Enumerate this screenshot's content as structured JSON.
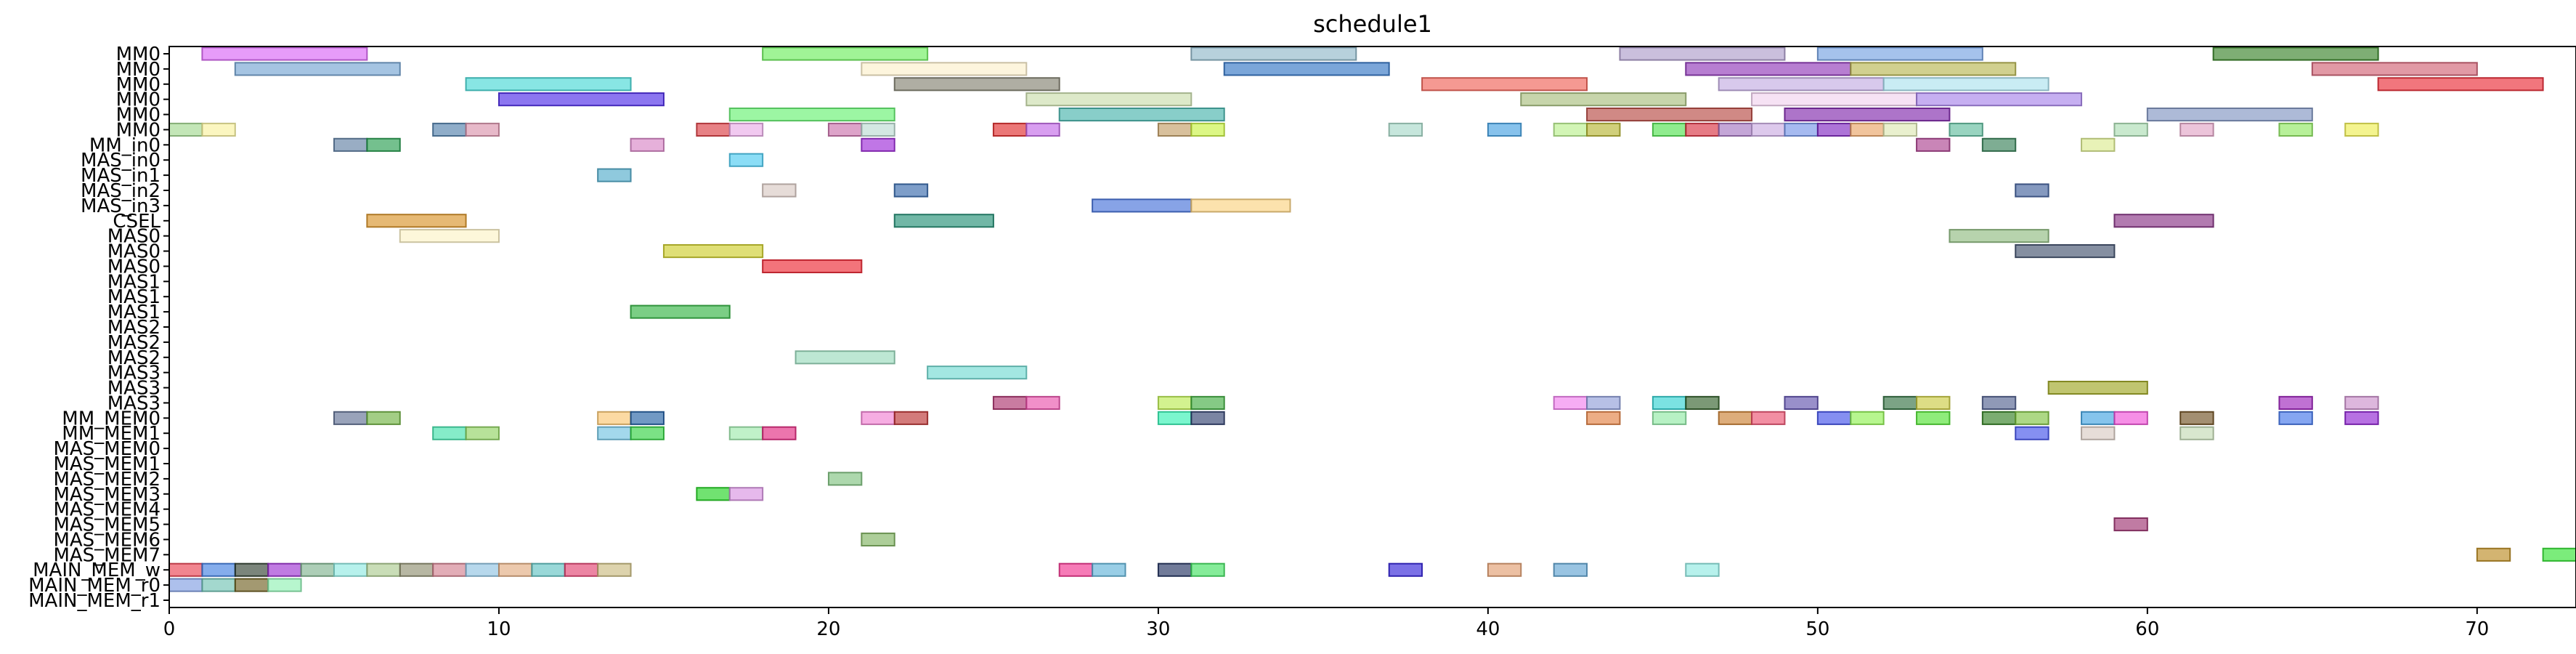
{
  "chart_data": {
    "type": "gantt",
    "title": "schedule1",
    "xlabel": "",
    "ylabel": "",
    "xlim": [
      0,
      73
    ],
    "x_ticks": [
      0,
      10,
      20,
      30,
      40,
      50,
      60,
      70
    ],
    "grid": false,
    "rows": [
      "MM0",
      "MM0",
      "MM0",
      "MM0",
      "MM0",
      "MM0",
      "MM_in0",
      "MAS_in0",
      "MAS_in1",
      "MAS_in2",
      "MAS_in3",
      "CSEL",
      "MAS0",
      "MAS0",
      "MAS0",
      "MAS1",
      "MAS1",
      "MAS1",
      "MAS2",
      "MAS2",
      "MAS2",
      "MAS3",
      "MAS3",
      "MAS3",
      "MM_MEM0",
      "MM_MEM1",
      "MAS_MEM0",
      "MAS_MEM1",
      "MAS_MEM2",
      "MAS_MEM3",
      "MAS_MEM4",
      "MAS_MEM5",
      "MAS_MEM6",
      "MAS_MEM7",
      "MAIN_MEM_w",
      "MAIN_MEM_r0",
      "MAIN_MEM_r1"
    ],
    "tasks": [
      {
        "row": 0,
        "start": 1,
        "end": 6,
        "color": "#d95ff5"
      },
      {
        "row": 0,
        "start": 18,
        "end": 23,
        "color": "#66ee55"
      },
      {
        "row": 0,
        "start": 31,
        "end": 36,
        "color": "#8ab4c6"
      },
      {
        "row": 0,
        "start": 44,
        "end": 49,
        "color": "#a997c8"
      },
      {
        "row": 0,
        "start": 50,
        "end": 55,
        "color": "#6d9de0"
      },
      {
        "row": 0,
        "start": 62,
        "end": 67,
        "color": "#2e7d1e"
      },
      {
        "row": 1,
        "start": 2,
        "end": 7,
        "color": "#6d9fd0"
      },
      {
        "row": 1,
        "start": 21,
        "end": 26,
        "color": "#fbefc8"
      },
      {
        "row": 1,
        "start": 32,
        "end": 37,
        "color": "#2a6fc2"
      },
      {
        "row": 1,
        "start": 46,
        "end": 51,
        "color": "#8a2fb5"
      },
      {
        "row": 1,
        "start": 51,
        "end": 56,
        "color": "#b5b34a"
      },
      {
        "row": 1,
        "start": 65,
        "end": 70,
        "color": "#cf5a6e"
      },
      {
        "row": 2,
        "start": 9,
        "end": 14,
        "color": "#3fd6d3"
      },
      {
        "row": 2,
        "start": 22,
        "end": 27,
        "color": "#7e7c6a"
      },
      {
        "row": 2,
        "start": 38,
        "end": 43,
        "color": "#ef5b4f"
      },
      {
        "row": 2,
        "start": 47,
        "end": 52,
        "color": "#c0a8e0"
      },
      {
        "row": 2,
        "start": 52,
        "end": 57,
        "color": "#a8e0ee"
      },
      {
        "row": 2,
        "start": 67,
        "end": 72,
        "color": "#e8222d"
      },
      {
        "row": 3,
        "start": 10,
        "end": 15,
        "color": "#4522e6"
      },
      {
        "row": 3,
        "start": 26,
        "end": 31,
        "color": "#c8dca8"
      },
      {
        "row": 3,
        "start": 41,
        "end": 46,
        "color": "#a4bc78"
      },
      {
        "row": 3,
        "start": 48,
        "end": 53,
        "color": "#f0d0ee"
      },
      {
        "row": 3,
        "start": 53,
        "end": 58,
        "color": "#a37ee8"
      },
      {
        "row": 4,
        "start": 17,
        "end": 22,
        "color": "#5ff06a"
      },
      {
        "row": 4,
        "start": 27,
        "end": 32,
        "color": "#3fb0a8"
      },
      {
        "row": 4,
        "start": 43,
        "end": 48,
        "color": "#b3413a"
      },
      {
        "row": 4,
        "start": 49,
        "end": 54,
        "color": "#7a1fa8"
      },
      {
        "row": 4,
        "start": 60,
        "end": 65,
        "color": "#7a8fbe"
      },
      {
        "row": 5,
        "start": 0,
        "end": 1,
        "color": "#9ed68a"
      },
      {
        "row": 5,
        "start": 1,
        "end": 2,
        "color": "#f8f19a"
      },
      {
        "row": 5,
        "start": 8,
        "end": 9,
        "color": "#4a7aa8"
      },
      {
        "row": 5,
        "start": 9,
        "end": 10,
        "color": "#d98ea8"
      },
      {
        "row": 5,
        "start": 16,
        "end": 17,
        "color": "#d9343a"
      },
      {
        "row": 5,
        "start": 17,
        "end": 18,
        "color": "#e8a8e6"
      },
      {
        "row": 5,
        "start": 20,
        "end": 21,
        "color": "#c86aa8"
      },
      {
        "row": 5,
        "start": 21,
        "end": 22,
        "color": "#b8dad0"
      },
      {
        "row": 5,
        "start": 25,
        "end": 26,
        "color": "#de2424"
      },
      {
        "row": 5,
        "start": 26,
        "end": 27,
        "color": "#c063e6"
      },
      {
        "row": 5,
        "start": 30,
        "end": 31,
        "color": "#c09a60"
      },
      {
        "row": 5,
        "start": 31,
        "end": 32,
        "color": "#c7f23a"
      },
      {
        "row": 5,
        "start": 37,
        "end": 38,
        "color": "#a3d7c6"
      },
      {
        "row": 5,
        "start": 40,
        "end": 41,
        "color": "#3e9ce0"
      },
      {
        "row": 5,
        "start": 42,
        "end": 43,
        "color": "#b6ef88"
      },
      {
        "row": 5,
        "start": 43,
        "end": 44,
        "color": "#b3b22a"
      },
      {
        "row": 5,
        "start": 45,
        "end": 46,
        "color": "#4ae048"
      },
      {
        "row": 5,
        "start": 46,
        "end": 47,
        "color": "#d62a3a"
      },
      {
        "row": 5,
        "start": 47,
        "end": 48,
        "color": "#a06fbe"
      },
      {
        "row": 5,
        "start": 48,
        "end": 49,
        "color": "#c8a8e0"
      },
      {
        "row": 5,
        "start": 49,
        "end": 50,
        "color": "#6f8fe6"
      },
      {
        "row": 5,
        "start": 50,
        "end": 51,
        "color": "#7a1fbe"
      },
      {
        "row": 5,
        "start": 51,
        "end": 52,
        "color": "#e8a060"
      },
      {
        "row": 5,
        "start": 52,
        "end": 53,
        "color": "#dbe6b0"
      },
      {
        "row": 5,
        "start": 54,
        "end": 55,
        "color": "#5aba9a"
      },
      {
        "row": 5,
        "start": 59,
        "end": 60,
        "color": "#a8dcb0"
      },
      {
        "row": 5,
        "start": 61,
        "end": 62,
        "color": "#e0a0c4"
      },
      {
        "row": 5,
        "start": 64,
        "end": 65,
        "color": "#8ae65a"
      },
      {
        "row": 5,
        "start": 66,
        "end": 67,
        "color": "#eded4a"
      },
      {
        "row": 6,
        "start": 5,
        "end": 6,
        "color": "#5a7aa0"
      },
      {
        "row": 6,
        "start": 6,
        "end": 7,
        "color": "#1e9a48"
      },
      {
        "row": 6,
        "start": 14,
        "end": 15,
        "color": "#d680c4"
      },
      {
        "row": 6,
        "start": 21,
        "end": 22,
        "color": "#9a22d6"
      },
      {
        "row": 6,
        "start": 53,
        "end": 54,
        "color": "#a83a8a"
      },
      {
        "row": 6,
        "start": 55,
        "end": 56,
        "color": "#2e7a50"
      },
      {
        "row": 6,
        "start": 58,
        "end": 59,
        "color": "#daea8a"
      },
      {
        "row": 7,
        "start": 17,
        "end": 18,
        "color": "#44c8f0"
      },
      {
        "row": 8,
        "start": 13,
        "end": 14,
        "color": "#4aa8c8"
      },
      {
        "row": 9,
        "start": 18,
        "end": 19,
        "color": "#d6c6c0"
      },
      {
        "row": 9,
        "start": 22,
        "end": 23,
        "color": "#2e62a8"
      },
      {
        "row": 9,
        "start": 56,
        "end": 57,
        "color": "#3a5a98"
      },
      {
        "row": 10,
        "start": 28,
        "end": 31,
        "color": "#3e6ad6"
      },
      {
        "row": 10,
        "start": 31,
        "end": 34,
        "color": "#fad07a"
      },
      {
        "row": 11,
        "start": 6,
        "end": 9,
        "color": "#d68e1e"
      },
      {
        "row": 11,
        "start": 22,
        "end": 25,
        "color": "#1a8a70"
      },
      {
        "row": 11,
        "start": 59,
        "end": 62,
        "color": "#822a80"
      },
      {
        "row": 12,
        "start": 7,
        "end": 10,
        "color": "#fcf2c4"
      },
      {
        "row": 12,
        "start": 54,
        "end": 57,
        "color": "#8ab87a"
      },
      {
        "row": 13,
        "start": 15,
        "end": 18,
        "color": "#cccc22"
      },
      {
        "row": 13,
        "start": 56,
        "end": 59,
        "color": "#3a4a68"
      },
      {
        "row": 14,
        "start": 18,
        "end": 21,
        "color": "#ec1e2a"
      },
      {
        "row": 17,
        "start": 14,
        "end": 17,
        "color": "#2ab03a"
      },
      {
        "row": 20,
        "start": 19,
        "end": 22,
        "color": "#94d8b8"
      },
      {
        "row": 21,
        "start": 23,
        "end": 26,
        "color": "#6ad8d0"
      },
      {
        "row": 22,
        "start": 57,
        "end": 60,
        "color": "#9aa218"
      },
      {
        "row": 23,
        "start": 25,
        "end": 26,
        "color": "#a82a68"
      },
      {
        "row": 23,
        "start": 26,
        "end": 27,
        "color": "#e84aa8"
      },
      {
        "row": 23,
        "start": 30,
        "end": 31,
        "color": "#b8ea4a"
      },
      {
        "row": 23,
        "start": 31,
        "end": 32,
        "color": "#3aaa3a"
      },
      {
        "row": 23,
        "start": 42,
        "end": 43,
        "color": "#f07aee"
      },
      {
        "row": 23,
        "start": 43,
        "end": 44,
        "color": "#8a9ad6"
      },
      {
        "row": 23,
        "start": 45,
        "end": 46,
        "color": "#2ad0d0"
      },
      {
        "row": 23,
        "start": 46,
        "end": 47,
        "color": "#2a5a22"
      },
      {
        "row": 23,
        "start": 49,
        "end": 50,
        "color": "#5a4aaa"
      },
      {
        "row": 23,
        "start": 52,
        "end": 53,
        "color": "#2a6a3a"
      },
      {
        "row": 23,
        "start": 53,
        "end": 54,
        "color": "#c8c83a"
      },
      {
        "row": 23,
        "start": 55,
        "end": 56,
        "color": "#4a5a8a"
      },
      {
        "row": 23,
        "start": 64,
        "end": 65,
        "color": "#9a1ab8"
      },
      {
        "row": 23,
        "start": 66,
        "end": 67,
        "color": "#c88ac8"
      },
      {
        "row": 24,
        "start": 5,
        "end": 6,
        "color": "#5a6a90"
      },
      {
        "row": 24,
        "start": 6,
        "end": 7,
        "color": "#6ab03a"
      },
      {
        "row": 24,
        "start": 13,
        "end": 14,
        "color": "#fac46a"
      },
      {
        "row": 24,
        "start": 14,
        "end": 15,
        "color": "#1a5aa0"
      },
      {
        "row": 24,
        "start": 21,
        "end": 22,
        "color": "#f07ad0"
      },
      {
        "row": 24,
        "start": 22,
        "end": 23,
        "color": "#b82a2a"
      },
      {
        "row": 24,
        "start": 30,
        "end": 31,
        "color": "#2af0b0"
      },
      {
        "row": 24,
        "start": 31,
        "end": 32,
        "color": "#2a3a6a"
      },
      {
        "row": 24,
        "start": 43,
        "end": 44,
        "color": "#e07a3a"
      },
      {
        "row": 24,
        "start": 45,
        "end": 46,
        "color": "#8ae8a0"
      },
      {
        "row": 24,
        "start": 47,
        "end": 48,
        "color": "#c87a2a"
      },
      {
        "row": 24,
        "start": 48,
        "end": 49,
        "color": "#ea4a6a"
      },
      {
        "row": 24,
        "start": 50,
        "end": 51,
        "color": "#3a4ae8"
      },
      {
        "row": 24,
        "start": 51,
        "end": 52,
        "color": "#8af04a"
      },
      {
        "row": 24,
        "start": 53,
        "end": 54,
        "color": "#4ae02a"
      },
      {
        "row": 24,
        "start": 55,
        "end": 56,
        "color": "#2a7a1a"
      },
      {
        "row": 24,
        "start": 56,
        "end": 57,
        "color": "#7ac03a"
      },
      {
        "row": 24,
        "start": 58,
        "end": 59,
        "color": "#3aa0e0"
      },
      {
        "row": 24,
        "start": 59,
        "end": 60,
        "color": "#f04ad6"
      },
      {
        "row": 24,
        "start": 61,
        "end": 62,
        "color": "#6a4a1a"
      },
      {
        "row": 24,
        "start": 64,
        "end": 65,
        "color": "#3a70e8"
      },
      {
        "row": 24,
        "start": 66,
        "end": 67,
        "color": "#8a1ad0"
      },
      {
        "row": 25,
        "start": 8,
        "end": 9,
        "color": "#3ae0a8"
      },
      {
        "row": 25,
        "start": 9,
        "end": 10,
        "color": "#8ad05a"
      },
      {
        "row": 25,
        "start": 13,
        "end": 14,
        "color": "#6ac0e0"
      },
      {
        "row": 25,
        "start": 14,
        "end": 15,
        "color": "#2ad03a"
      },
      {
        "row": 25,
        "start": 17,
        "end": 18,
        "color": "#9ae8a8"
      },
      {
        "row": 25,
        "start": 18,
        "end": 19,
        "color": "#e0207a"
      },
      {
        "row": 25,
        "start": 56,
        "end": 57,
        "color": "#3a4ae8"
      },
      {
        "row": 25,
        "start": 58,
        "end": 59,
        "color": "#d6c8c0"
      },
      {
        "row": 25,
        "start": 61,
        "end": 62,
        "color": "#c0d8b0"
      },
      {
        "row": 28,
        "start": 20,
        "end": 21,
        "color": "#7ac07a"
      },
      {
        "row": 29,
        "start": 16,
        "end": 17,
        "color": "#1ad01a"
      },
      {
        "row": 29,
        "start": 17,
        "end": 18,
        "color": "#d68ee0"
      },
      {
        "row": 31,
        "start": 59,
        "end": 60,
        "color": "#9a2a6a"
      },
      {
        "row": 32,
        "start": 21,
        "end": 22,
        "color": "#7ab05a"
      },
      {
        "row": 33,
        "start": 70,
        "end": 71,
        "color": "#b8861a"
      },
      {
        "row": 33,
        "start": 72,
        "end": 73,
        "color": "#2ae02a"
      },
      {
        "row": 34,
        "start": 0,
        "end": 1,
        "color": "#e83a4a"
      },
      {
        "row": 34,
        "start": 1,
        "end": 2,
        "color": "#3a7ae0"
      },
      {
        "row": 34,
        "start": 2,
        "end": 3,
        "color": "#2a3a2a"
      },
      {
        "row": 34,
        "start": 3,
        "end": 4,
        "color": "#9a2ad0"
      },
      {
        "row": 34,
        "start": 4,
        "end": 5,
        "color": "#7ab08a"
      },
      {
        "row": 34,
        "start": 5,
        "end": 6,
        "color": "#8ae8e0"
      },
      {
        "row": 34,
        "start": 6,
        "end": 7,
        "color": "#a8c88a"
      },
      {
        "row": 34,
        "start": 7,
        "end": 8,
        "color": "#8a8a6a"
      },
      {
        "row": 34,
        "start": 8,
        "end": 9,
        "color": "#d07a8a"
      },
      {
        "row": 34,
        "start": 9,
        "end": 10,
        "color": "#8ac0e0"
      },
      {
        "row": 34,
        "start": 10,
        "end": 11,
        "color": "#e0a87a"
      },
      {
        "row": 34,
        "start": 11,
        "end": 12,
        "color": "#5ac0c0"
      },
      {
        "row": 34,
        "start": 12,
        "end": 13,
        "color": "#e03a6a"
      },
      {
        "row": 34,
        "start": 13,
        "end": 14,
        "color": "#c8b87a"
      },
      {
        "row": 34,
        "start": 27,
        "end": 28,
        "color": "#f02a8a"
      },
      {
        "row": 34,
        "start": 28,
        "end": 29,
        "color": "#5ab0d6"
      },
      {
        "row": 34,
        "start": 30,
        "end": 31,
        "color": "#1a2a5a"
      },
      {
        "row": 34,
        "start": 31,
        "end": 32,
        "color": "#3ae05a"
      },
      {
        "row": 34,
        "start": 37,
        "end": 38,
        "color": "#2a1ad6"
      },
      {
        "row": 34,
        "start": 40,
        "end": 41,
        "color": "#e09a6a"
      },
      {
        "row": 34,
        "start": 42,
        "end": 43,
        "color": "#5aa0d0"
      },
      {
        "row": 34,
        "start": 46,
        "end": 47,
        "color": "#8ae8e0"
      },
      {
        "row": 35,
        "start": 0,
        "end": 1,
        "color": "#7a9ae0"
      },
      {
        "row": 35,
        "start": 1,
        "end": 2,
        "color": "#6ac0b0"
      },
      {
        "row": 35,
        "start": 2,
        "end": 3,
        "color": "#6a5a1a"
      },
      {
        "row": 35,
        "start": 3,
        "end": 4,
        "color": "#8af0b0"
      }
    ]
  }
}
